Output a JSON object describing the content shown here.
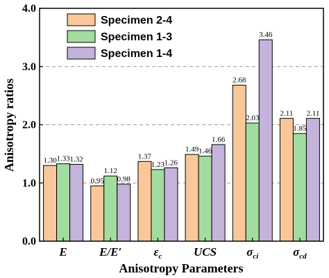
{
  "chart_data": {
    "type": "bar",
    "title": "",
    "xlabel": "Anisotropy Parameters",
    "ylabel": "Anisotropy ratios",
    "ylim": [
      0,
      4
    ],
    "yticks": [
      "0.0",
      "1.0",
      "2.0",
      "3.0",
      "4.0"
    ],
    "grid": "horizontal dashed",
    "legend_position": "top-left",
    "categories": [
      {
        "main": "E",
        "sub": ""
      },
      {
        "main": "E/E′",
        "sub": ""
      },
      {
        "main": "ε",
        "sub": "c"
      },
      {
        "main": "UCS",
        "sub": ""
      },
      {
        "main": "σ",
        "sub": "ci"
      },
      {
        "main": "σ",
        "sub": "cd"
      }
    ],
    "series": [
      {
        "name": "Specimen 2-4",
        "color": "#F9C79A",
        "values": [
          1.3,
          0.95,
          1.37,
          1.49,
          2.68,
          2.11
        ],
        "labels": [
          "1.30",
          "0.95",
          "1.37",
          "1.49",
          "2.68",
          "2.11"
        ]
      },
      {
        "name": "Specimen 1-3",
        "color": "#A3DCA0",
        "values": [
          1.33,
          1.12,
          1.23,
          1.46,
          2.03,
          1.85
        ],
        "labels": [
          "1.33",
          "1.12",
          "1.23",
          "1.46",
          "2.03",
          "1.85"
        ]
      },
      {
        "name": "Specimen 1-4",
        "color": "#C4B3DA",
        "values": [
          1.32,
          0.98,
          1.26,
          1.66,
          3.46,
          2.11
        ],
        "labels": [
          "1.32",
          "0.98",
          "1.26",
          "1.66",
          "3.46",
          "2.11"
        ]
      }
    ]
  }
}
